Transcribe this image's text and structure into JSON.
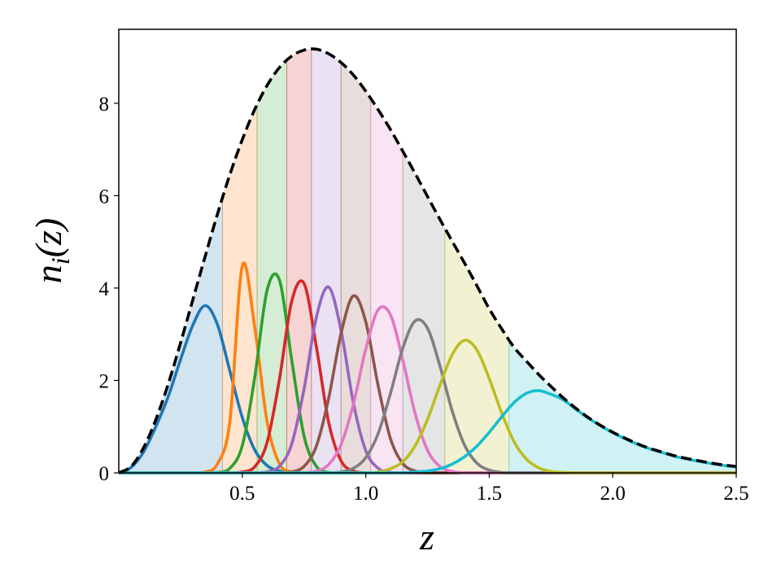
{
  "chart_data": {
    "type": "line",
    "x_label": "z",
    "y_label_parts": [
      "n",
      "i",
      "(z)"
    ],
    "xlim": [
      0,
      2.5
    ],
    "ylim": [
      0,
      9.6
    ],
    "xticks": [
      0.5,
      {
        "value": 1,
        "label": "1.0"
      },
      1.5,
      {
        "value": 2,
        "label": "2.0"
      },
      2.5
    ],
    "yticks": [
      0,
      2,
      4,
      6,
      8
    ],
    "bin_edges": [
      0,
      0.42,
      0.56,
      0.68,
      0.78,
      0.9,
      1.02,
      1.15,
      1.32,
      1.58,
      2.5
    ],
    "x": [
      0,
      0.05,
      0.1,
      0.15,
      0.2,
      0.25,
      0.3,
      0.35,
      0.4,
      0.45,
      0.5,
      0.55,
      0.6,
      0.65,
      0.7,
      0.75,
      0.8,
      0.85,
      0.9,
      0.95,
      1,
      1.05,
      1.1,
      1.15,
      1.2,
      1.25,
      1.3,
      1.35,
      1.4,
      1.45,
      1.5,
      1.55,
      1.6,
      1.65,
      1.7,
      1.75,
      1.8,
      1.85,
      1.9,
      1.95,
      2,
      2.05,
      2.1,
      2.15,
      2.2,
      2.25,
      2.3,
      2.35,
      2.4,
      2.45,
      2.5
    ],
    "series": [
      {
        "color": "#1f77b4",
        "values": [
          0,
          0.12,
          0.45,
          1.0,
          1.65,
          2.45,
          3.2,
          3.62,
          3.2,
          2.2,
          1.2,
          0.5,
          0.16,
          0.04,
          0,
          0,
          0,
          0,
          0,
          0,
          0,
          0,
          0,
          0,
          0,
          0,
          0,
          0,
          0,
          0,
          0,
          0,
          0,
          0,
          0,
          0,
          0,
          0,
          0,
          0,
          0,
          0,
          0,
          0,
          0,
          0,
          0,
          0,
          0,
          0,
          0
        ]
      },
      {
        "color": "#ff7f0e",
        "values": [
          0,
          0,
          0,
          0,
          0,
          0,
          0,
          0.02,
          0.2,
          1.12,
          4.48,
          3.17,
          1.12,
          0.2,
          0.02,
          0,
          0,
          0,
          0,
          0,
          0,
          0,
          0,
          0,
          0,
          0,
          0,
          0,
          0,
          0,
          0,
          0,
          0,
          0,
          0,
          0,
          0,
          0,
          0,
          0,
          0,
          0,
          0,
          0,
          0,
          0,
          0,
          0,
          0,
          0,
          0
        ]
      },
      {
        "color": "#2ca02c",
        "values": [
          0,
          0,
          0,
          0,
          0,
          0,
          0,
          0,
          0.01,
          0.1,
          0.59,
          2.05,
          3.94,
          4.18,
          2.45,
          0.8,
          0.14,
          0.01,
          0,
          0,
          0,
          0,
          0,
          0,
          0,
          0,
          0,
          0,
          0,
          0,
          0,
          0,
          0,
          0,
          0,
          0,
          0,
          0,
          0,
          0,
          0,
          0,
          0,
          0,
          0,
          0,
          0,
          0,
          0,
          0,
          0
        ]
      },
      {
        "color": "#d62728",
        "values": [
          0,
          0,
          0,
          0,
          0,
          0,
          0,
          0,
          0,
          0,
          0.02,
          0.13,
          0.65,
          2.01,
          3.71,
          4.1,
          2.73,
          1.09,
          0.26,
          0.04,
          0,
          0,
          0,
          0,
          0,
          0,
          0,
          0,
          0,
          0,
          0,
          0,
          0,
          0,
          0,
          0,
          0,
          0,
          0,
          0,
          0,
          0,
          0,
          0,
          0,
          0,
          0,
          0,
          0,
          0,
          0
        ]
      },
      {
        "color": "#9467bd",
        "values": [
          0,
          0,
          0,
          0,
          0,
          0,
          0,
          0,
          0,
          0,
          0,
          0,
          0.02,
          0.14,
          0.62,
          1.81,
          3.37,
          4.02,
          3.08,
          1.51,
          0.48,
          0.1,
          0.01,
          0,
          0,
          0,
          0,
          0,
          0,
          0,
          0,
          0,
          0,
          0,
          0,
          0,
          0,
          0,
          0,
          0,
          0,
          0,
          0,
          0,
          0,
          0,
          0,
          0,
          0,
          0,
          0
        ]
      },
      {
        "color": "#8c564b",
        "values": [
          0,
          0,
          0,
          0,
          0,
          0,
          0,
          0,
          0,
          0,
          0,
          0,
          0,
          0,
          0.02,
          0.14,
          0.58,
          1.62,
          3.02,
          3.83,
          3.27,
          1.89,
          0.74,
          0.2,
          0.04,
          0,
          0,
          0,
          0,
          0,
          0,
          0,
          0,
          0,
          0,
          0,
          0,
          0,
          0,
          0,
          0,
          0,
          0,
          0,
          0,
          0,
          0,
          0,
          0,
          0,
          0
        ]
      },
      {
        "color": "#e377c2",
        "values": [
          0,
          0,
          0,
          0,
          0,
          0,
          0,
          0,
          0,
          0,
          0,
          0,
          0,
          0,
          0,
          0,
          0.04,
          0.18,
          0.61,
          1.49,
          2.68,
          3.53,
          3.42,
          2.44,
          1.28,
          0.49,
          0.14,
          0.03,
          0,
          0,
          0,
          0,
          0,
          0,
          0,
          0,
          0,
          0,
          0,
          0,
          0,
          0,
          0,
          0,
          0,
          0,
          0,
          0,
          0,
          0,
          0
        ]
      },
      {
        "color": "#7f7f7f",
        "values": [
          0,
          0,
          0,
          0,
          0,
          0,
          0,
          0,
          0,
          0,
          0,
          0,
          0,
          0,
          0,
          0,
          0,
          0,
          0.02,
          0.1,
          0.33,
          0.85,
          1.72,
          2.7,
          3.29,
          3.13,
          2.32,
          1.34,
          0.6,
          0.21,
          0.06,
          0.01,
          0,
          0,
          0,
          0,
          0,
          0,
          0,
          0,
          0,
          0,
          0,
          0,
          0,
          0,
          0,
          0,
          0,
          0,
          0
        ]
      },
      {
        "color": "#bcbd22",
        "values": [
          0,
          0,
          0,
          0,
          0,
          0,
          0,
          0,
          0,
          0,
          0,
          0,
          0,
          0,
          0,
          0,
          0,
          0,
          0,
          0,
          0,
          0.02,
          0.09,
          0.24,
          0.59,
          1.16,
          1.89,
          2.56,
          2.87,
          2.66,
          2.04,
          1.3,
          0.68,
          0.3,
          0.11,
          0.03,
          0.01,
          0,
          0,
          0,
          0,
          0,
          0,
          0,
          0,
          0,
          0,
          0,
          0,
          0,
          0
        ]
      },
      {
        "color": "#17becf",
        "values": [
          0,
          0,
          0,
          0,
          0,
          0,
          0,
          0,
          0,
          0,
          0,
          0,
          0,
          0,
          0,
          0,
          0,
          0,
          0,
          0,
          0,
          0,
          0,
          0,
          0.02,
          0.04,
          0.09,
          0.19,
          0.35,
          0.58,
          0.88,
          1.21,
          1.52,
          1.72,
          1.78,
          1.7,
          1.58,
          1.38,
          1.19,
          1.02,
          0.87,
          0.74,
          0.62,
          0.52,
          0.44,
          0.36,
          0.3,
          0.25,
          0.2,
          0.16,
          0.13
        ]
      }
    ],
    "envelope": {
      "color": "#000000",
      "linestyle": "dashed",
      "values": [
        0,
        0.14,
        0.54,
        1.15,
        1.92,
        2.81,
        3.75,
        4.69,
        5.61,
        6.46,
        7.21,
        7.86,
        8.38,
        8.77,
        9.02,
        9.15,
        9.17,
        9.07,
        8.88,
        8.61,
        8.26,
        7.86,
        7.43,
        6.96,
        6.48,
        5.98,
        5.49,
        5.01,
        4.54,
        4.05,
        3.55,
        3.12,
        2.72,
        2.42,
        2.13,
        1.87,
        1.62,
        1.4,
        1.2,
        1.03,
        0.88,
        0.75,
        0.63,
        0.53,
        0.45,
        0.37,
        0.31,
        0.26,
        0.21,
        0.17,
        0.14
      ]
    },
    "shade_bins": true
  }
}
